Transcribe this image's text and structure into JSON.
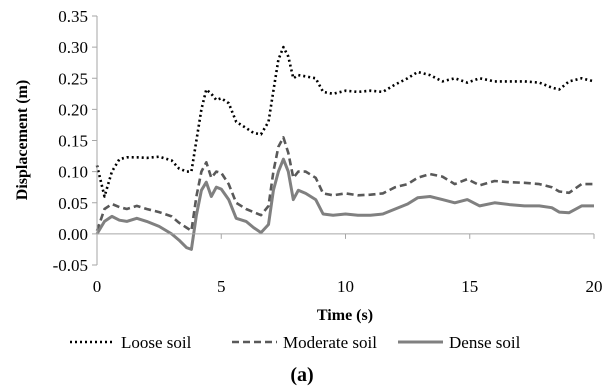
{
  "chart_data": {
    "type": "line",
    "title": "",
    "caption": "(a)",
    "xlabel": "Time (s)",
    "ylabel": "Displacement (m)",
    "xlim": [
      0,
      20
    ],
    "ylim": [
      -0.05,
      0.35
    ],
    "x_ticks": [
      0,
      5,
      10,
      15,
      20
    ],
    "y_ticks": [
      -0.05,
      0.0,
      0.05,
      0.1,
      0.15,
      0.2,
      0.25,
      0.3,
      0.35
    ],
    "x_tick_labels": [
      "0",
      "5",
      "10",
      "15",
      "20"
    ],
    "y_tick_labels": [
      "-0.05",
      "0.00",
      "0.05",
      "0.10",
      "0.15",
      "0.20",
      "0.25",
      "0.30",
      "0.35"
    ],
    "grid": false,
    "legend_position": "bottom",
    "series": [
      {
        "name": "Loose soil",
        "style": "dotted",
        "color": "#000000",
        "x": [
          0,
          0.3,
          0.6,
          0.9,
          1.2,
          1.6,
          2.0,
          2.5,
          3.0,
          3.3,
          3.6,
          3.8,
          4.0,
          4.2,
          4.4,
          4.6,
          4.8,
          5.0,
          5.3,
          5.6,
          6.0,
          6.3,
          6.6,
          6.9,
          7.1,
          7.3,
          7.5,
          7.7,
          7.9,
          8.1,
          8.4,
          8.8,
          9.1,
          9.5,
          10.0,
          10.5,
          11.0,
          11.5,
          12.0,
          12.5,
          12.9,
          13.4,
          13.9,
          14.4,
          14.9,
          15.4,
          16.0,
          16.6,
          17.2,
          17.8,
          18.3,
          18.6,
          19.0,
          19.5,
          20.0
        ],
        "y": [
          0.11,
          0.06,
          0.1,
          0.12,
          0.123,
          0.123,
          0.122,
          0.124,
          0.118,
          0.105,
          0.1,
          0.1,
          0.15,
          0.2,
          0.232,
          0.225,
          0.215,
          0.218,
          0.21,
          0.18,
          0.17,
          0.162,
          0.16,
          0.18,
          0.23,
          0.28,
          0.3,
          0.285,
          0.25,
          0.255,
          0.253,
          0.25,
          0.228,
          0.225,
          0.23,
          0.228,
          0.23,
          0.228,
          0.24,
          0.25,
          0.26,
          0.255,
          0.245,
          0.25,
          0.243,
          0.25,
          0.245,
          0.245,
          0.245,
          0.243,
          0.235,
          0.232,
          0.245,
          0.25,
          0.245
        ]
      },
      {
        "name": "Moderate soil",
        "style": "dashed",
        "color": "#595959",
        "x": [
          0,
          0.3,
          0.6,
          0.9,
          1.2,
          1.6,
          2.0,
          2.5,
          3.0,
          3.3,
          3.6,
          3.8,
          4.0,
          4.2,
          4.4,
          4.6,
          4.8,
          5.0,
          5.3,
          5.6,
          6.0,
          6.3,
          6.6,
          6.9,
          7.1,
          7.3,
          7.5,
          7.7,
          7.9,
          8.1,
          8.4,
          8.8,
          9.1,
          9.5,
          10.0,
          10.5,
          11.0,
          11.5,
          12.0,
          12.5,
          12.9,
          13.4,
          13.9,
          14.4,
          14.9,
          15.4,
          16.0,
          16.6,
          17.2,
          17.8,
          18.3,
          18.6,
          19.0,
          19.5,
          20.0
        ],
        "y": [
          0.005,
          0.04,
          0.048,
          0.043,
          0.04,
          0.045,
          0.04,
          0.035,
          0.028,
          0.018,
          0.01,
          0.005,
          0.06,
          0.1,
          0.115,
          0.09,
          0.1,
          0.098,
          0.08,
          0.05,
          0.04,
          0.035,
          0.03,
          0.045,
          0.1,
          0.14,
          0.155,
          0.13,
          0.09,
          0.1,
          0.1,
          0.09,
          0.065,
          0.062,
          0.065,
          0.062,
          0.063,
          0.065,
          0.075,
          0.08,
          0.09,
          0.096,
          0.092,
          0.08,
          0.088,
          0.078,
          0.085,
          0.083,
          0.082,
          0.08,
          0.075,
          0.068,
          0.066,
          0.08,
          0.08
        ]
      },
      {
        "name": "Dense soil",
        "style": "solid",
        "color": "#808080",
        "x": [
          0,
          0.3,
          0.6,
          0.9,
          1.2,
          1.6,
          2.0,
          2.5,
          3.0,
          3.3,
          3.6,
          3.8,
          4.0,
          4.2,
          4.4,
          4.6,
          4.8,
          5.0,
          5.3,
          5.6,
          6.0,
          6.3,
          6.6,
          6.9,
          7.1,
          7.3,
          7.5,
          7.7,
          7.9,
          8.1,
          8.4,
          8.8,
          9.1,
          9.5,
          10.0,
          10.5,
          11.0,
          11.5,
          12.0,
          12.5,
          12.9,
          13.4,
          13.9,
          14.4,
          14.9,
          15.4,
          16.0,
          16.6,
          17.2,
          17.8,
          18.3,
          18.6,
          19.0,
          19.5,
          20.0
        ],
        "y": [
          0.0,
          0.02,
          0.028,
          0.022,
          0.02,
          0.025,
          0.02,
          0.012,
          0.0,
          -0.01,
          -0.022,
          -0.025,
          0.03,
          0.07,
          0.083,
          0.06,
          0.075,
          0.072,
          0.055,
          0.025,
          0.02,
          0.01,
          0.002,
          0.015,
          0.07,
          0.1,
          0.12,
          0.1,
          0.055,
          0.07,
          0.065,
          0.055,
          0.032,
          0.03,
          0.032,
          0.03,
          0.03,
          0.032,
          0.04,
          0.048,
          0.058,
          0.06,
          0.055,
          0.05,
          0.055,
          0.045,
          0.05,
          0.047,
          0.045,
          0.045,
          0.042,
          0.035,
          0.034,
          0.045,
          0.045
        ]
      }
    ]
  }
}
